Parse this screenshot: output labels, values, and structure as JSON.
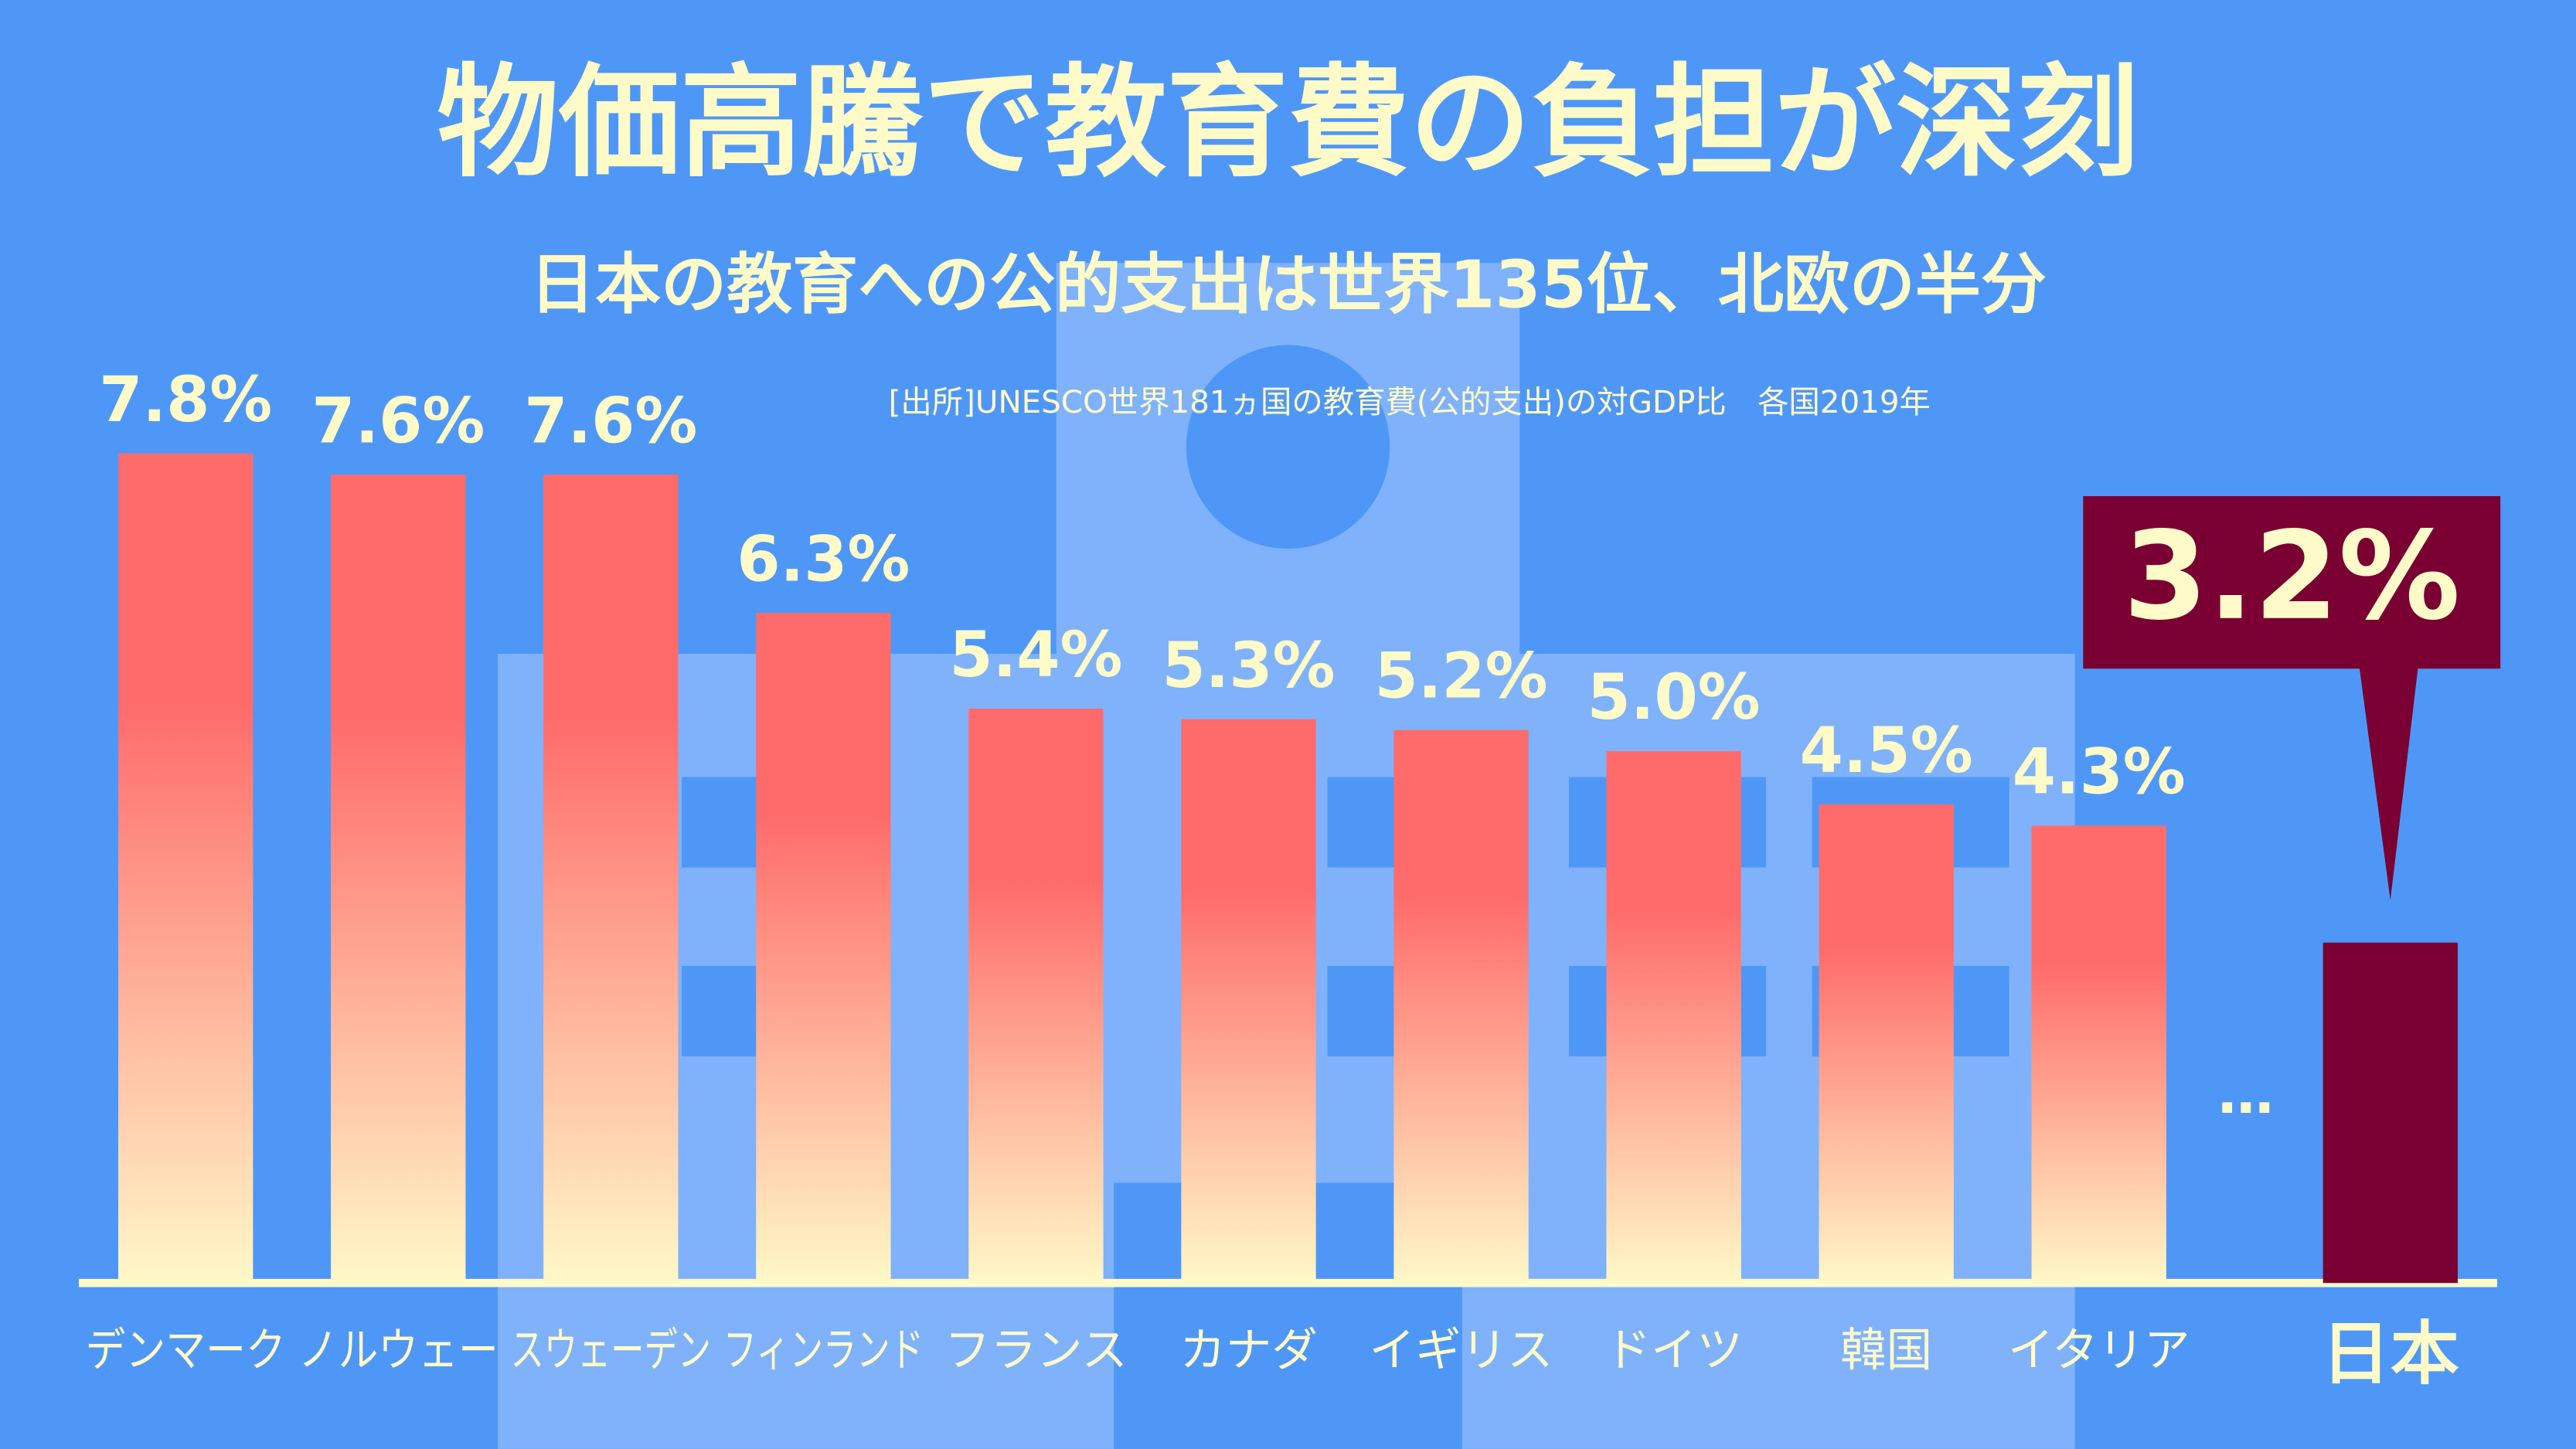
{
  "chart_data": {
    "type": "bar",
    "title": "物価高騰で教育費の負担が深刻",
    "subtitle": "日本の教育への公的支出は世界135位、北欧の半分",
    "source": "[出所]UNESCO世界181ヵ国の教育費(公的支出)の対GDP比　各国2019年",
    "categories": [
      "デンマーク",
      "ノルウェー",
      "スウェーデン",
      "フィンランド",
      "フランス",
      "カナダ",
      "イギリス",
      "ドイツ",
      "韓国",
      "イタリア",
      "日本"
    ],
    "values": [
      7.8,
      7.6,
      7.6,
      6.3,
      5.4,
      5.3,
      5.2,
      5.0,
      4.5,
      4.3,
      3.2
    ],
    "value_labels": [
      "7.8%",
      "7.6%",
      "7.6%",
      "6.3%",
      "5.4%",
      "5.3%",
      "5.2%",
      "5.0%",
      "4.5%",
      "4.3%",
      "3.2%"
    ],
    "fills": [
      [
        "#ff6b6b",
        "#fff8c8"
      ],
      [
        "#ff6b6b",
        "#fff8c8"
      ],
      [
        "#ff6b6b",
        "#fff8c8"
      ],
      [
        "#ff6b6b",
        "#fff8c8"
      ],
      [
        "#ff6b6b",
        "#fff8c8"
      ],
      [
        "#ff6b6b",
        "#fff8c8"
      ],
      [
        "#ff6b6b",
        "#fff8c8"
      ],
      [
        "#ff6b6b",
        "#fff8c8"
      ],
      [
        "#ff6b6b",
        "#fff8c8"
      ],
      [
        "#ff6b6b",
        "#fff8c8"
      ],
      "#7a0033"
    ],
    "gap_label": "…",
    "ylim": [
      0,
      8
    ]
  }
}
